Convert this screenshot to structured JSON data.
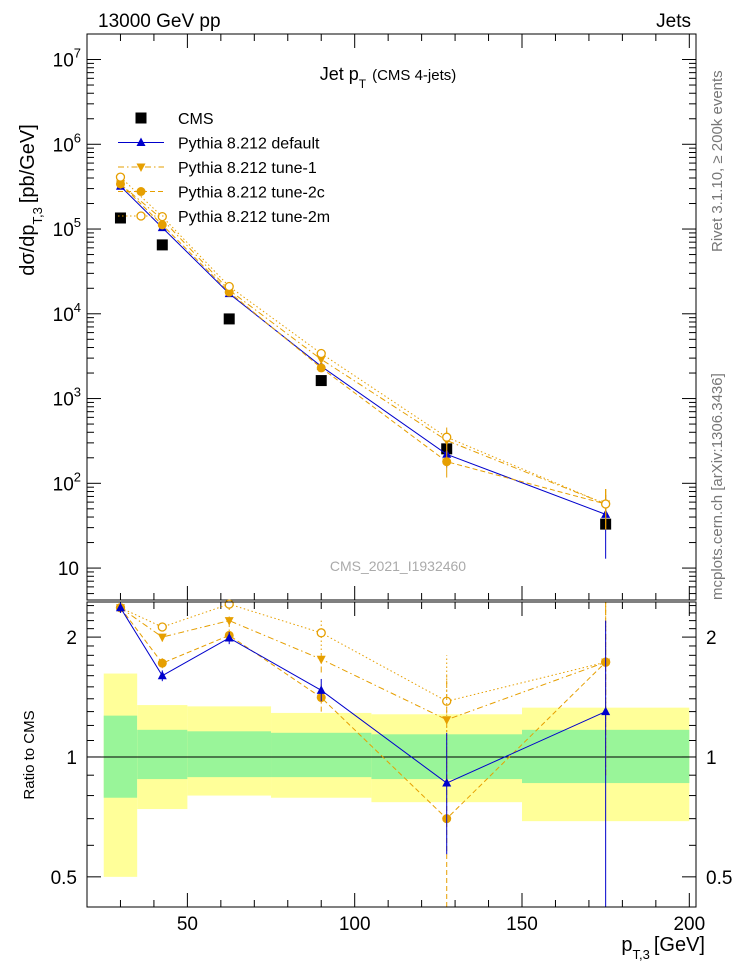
{
  "header": {
    "left": "13000 GeV pp",
    "right": "Jets"
  },
  "side_labels": {
    "rivet": "Rivet 3.1.10, ≥ 200k events",
    "mcplots": "mcplots.cern.ch [arXiv:1306.3436]"
  },
  "chart_data": [
    {
      "type": "scatter",
      "panel": "main",
      "title": "Jet p_T (CMS 4-jets)",
      "title_main": "Jet p",
      "title_sub": "T",
      "title_suffix": "(CMS 4-jets)",
      "ylabel": "dσ/dp_T,3 [pb/GeV]",
      "ylabel_main": "dσ/dp",
      "ylabel_sub": "T,3",
      "ylabel_unit": "[pb/GeV]",
      "yscale": "log",
      "xlim": [
        20,
        202
      ],
      "ylim": [
        4.2,
        20000000.0
      ],
      "ytick_labels": [
        {
          "value": 10,
          "text": "10"
        },
        {
          "value": 100,
          "base": "10",
          "exp": "2"
        },
        {
          "value": 1000,
          "base": "10",
          "exp": "3"
        },
        {
          "value": 10000,
          "base": "10",
          "exp": "4"
        },
        {
          "value": 100000,
          "base": "10",
          "exp": "5"
        },
        {
          "value": 1000000,
          "base": "10",
          "exp": "6"
        },
        {
          "value": 10000000,
          "base": "10",
          "exp": "7"
        }
      ],
      "watermark": "CMS_2021_I1932460",
      "legend_position": "top-left",
      "x": [
        30,
        42.5,
        62.5,
        90,
        127.5,
        175
      ],
      "xerr": [
        [
          25,
          35
        ],
        [
          35,
          50
        ],
        [
          50,
          75
        ],
        [
          75,
          105
        ],
        [
          105,
          150
        ],
        [
          150,
          200
        ]
      ],
      "series": [
        {
          "name": "CMS",
          "color": "#000000",
          "marker": "square",
          "line": "none",
          "values": [
            135000,
            65000,
            8700,
            1630,
            255,
            33
          ]
        },
        {
          "name": "Pythia 8.212 default",
          "color": "#0000cc",
          "marker": "triangle-up",
          "line": "solid",
          "values": [
            320000,
            104000,
            17300,
            2400,
            220,
            43
          ],
          "yerr_frac": [
            0.03,
            0.03,
            0.04,
            0.07,
            0.3,
            0.7
          ]
        },
        {
          "name": "Pythia 8.212 tune-1",
          "color": "#e69f00",
          "marker": "triangle-down",
          "line": "dash-dot",
          "values": [
            340000,
            130000,
            19000,
            2900,
            320,
            57
          ],
          "yerr_frac": [
            0.03,
            0.03,
            0.04,
            0.07,
            0.3,
            0.5
          ]
        },
        {
          "name": "Pythia 8.212 tune-2c",
          "color": "#e69f00",
          "marker": "circle",
          "line": "dashed",
          "values": [
            340000,
            112000,
            18000,
            2300,
            180,
            57
          ],
          "yerr_frac": [
            0.03,
            0.03,
            0.04,
            0.07,
            0.35,
            0.5
          ]
        },
        {
          "name": "Pythia 8.212 tune-2m",
          "color": "#e69f00",
          "marker": "circle-open",
          "line": "dotted",
          "values": [
            410000,
            140000,
            21000,
            3400,
            350,
            57
          ],
          "yerr_frac": [
            0.03,
            0.03,
            0.04,
            0.07,
            0.3,
            0.5
          ]
        }
      ]
    },
    {
      "type": "scatter",
      "panel": "ratio",
      "ylabel": "Ratio to CMS",
      "yscale": "log",
      "xlabel": "p_T,3 [GeV]",
      "xlabel_main": "p",
      "xlabel_sub": "T,3",
      "xlabel_unit": "[GeV]",
      "xlim": [
        20,
        202
      ],
      "ylim": [
        0.42,
        2.45
      ],
      "xtick_labels": [
        {
          "value": 50,
          "text": "50"
        },
        {
          "value": 100,
          "text": "100"
        },
        {
          "value": 150,
          "text": "150"
        },
        {
          "value": 200,
          "text": "200"
        }
      ],
      "ytick_labels": [
        {
          "value": 0.5,
          "text": "0.5"
        },
        {
          "value": 1,
          "text": "1"
        },
        {
          "value": 2,
          "text": "2"
        }
      ],
      "bands": [
        {
          "x0": 25,
          "x1": 35,
          "inner": [
            0.79,
            1.27
          ],
          "outer": [
            0.5,
            1.62
          ]
        },
        {
          "x0": 35,
          "x1": 50,
          "inner": [
            0.88,
            1.17
          ],
          "outer": [
            0.74,
            1.35
          ]
        },
        {
          "x0": 50,
          "x1": 75,
          "inner": [
            0.89,
            1.16
          ],
          "outer": [
            0.8,
            1.34
          ]
        },
        {
          "x0": 75,
          "x1": 105,
          "inner": [
            0.89,
            1.15
          ],
          "outer": [
            0.79,
            1.29
          ]
        },
        {
          "x0": 105,
          "x1": 150,
          "inner": [
            0.88,
            1.14
          ],
          "outer": [
            0.77,
            1.28
          ]
        },
        {
          "x0": 150,
          "x1": 200,
          "inner": [
            0.86,
            1.17
          ],
          "outer": [
            0.69,
            1.33
          ]
        }
      ],
      "band_colors": {
        "inner": "#99f599",
        "outer": "#ffff99"
      },
      "x": [
        30,
        42.5,
        62.5,
        90,
        127.5,
        175
      ],
      "series": [
        {
          "name": "Pythia 8.212 default",
          "color": "#0000cc",
          "marker": "triangle-up",
          "line": "solid",
          "values": [
            2.37,
            1.6,
            1.99,
            1.47,
            0.86,
            1.3
          ],
          "err_lo": [
            2.3,
            1.55,
            1.92,
            1.38,
            0.57,
            0.3
          ],
          "err_hi": [
            2.44,
            1.65,
            2.06,
            1.57,
            1.15,
            2.2
          ]
        },
        {
          "name": "Pythia 8.212 tune-1",
          "color": "#e69f00",
          "marker": "triangle-down",
          "line": "dash-dot",
          "values": [
            2.37,
            2.0,
            2.2,
            1.76,
            1.24,
            1.73
          ],
          "err_lo": [
            2.32,
            1.95,
            2.12,
            1.63,
            0.87,
            0.9
          ],
          "err_hi": [
            2.42,
            2.05,
            2.28,
            1.89,
            1.6,
            2.56
          ]
        },
        {
          "name": "Pythia 8.212 tune-2c",
          "color": "#e69f00",
          "marker": "circle",
          "line": "dashed",
          "values": [
            2.37,
            1.72,
            2.02,
            1.41,
            0.7,
            1.73
          ],
          "err_lo": [
            2.32,
            1.67,
            1.95,
            1.3,
            0.39,
            0.9
          ],
          "err_hi": [
            2.42,
            1.77,
            2.09,
            1.52,
            1.0,
            2.56
          ]
        },
        {
          "name": "Pythia 8.212 tune-2m",
          "color": "#e69f00",
          "marker": "circle-open",
          "line": "dotted",
          "values": [
            2.37,
            2.12,
            2.42,
            2.05,
            1.38,
            1.73
          ],
          "err_lo": [
            2.32,
            2.07,
            2.34,
            1.9,
            0.96,
            0.9
          ],
          "err_hi": [
            2.42,
            2.17,
            2.5,
            2.2,
            1.8,
            2.56
          ]
        }
      ]
    }
  ]
}
